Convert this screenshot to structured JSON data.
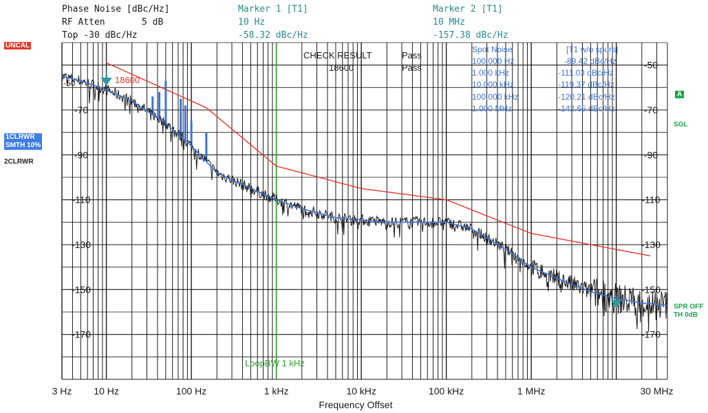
{
  "header": {
    "phase_noise_label": "Phase Noise [dBc/Hz]",
    "rf_atten_label": "RF Atten",
    "rf_atten_value": "5 dB",
    "top_label": "Top -30 dBc/Hz",
    "marker1_title": "Marker 1 [T1]",
    "marker1_freq": "10 Hz",
    "marker1_level": "-58.32 dBc/Hz",
    "marker2_title": "Marker 2 [T1]",
    "marker2_freq": "10 MHz",
    "marker2_level": "-157.38 dBc/Hz"
  },
  "left_panel": {
    "uncal": "UNCAL",
    "trace1_line1": "1CLRWR",
    "trace1_line2": "SMTH 10%",
    "trace2": "2CLRWR"
  },
  "right_panel": {
    "a_box": "A",
    "sgl": "SGL",
    "spr_off": "SPR OFF",
    "th": "TH 0dB"
  },
  "check": {
    "title": "CHECK RESULT",
    "name": "18600",
    "result1": "Pass",
    "result2": "Pass"
  },
  "spot_noise": {
    "header_left": "Spot Noise",
    "header_right": "[T1 w/o spurs]",
    "rows": [
      {
        "freq": "100.000 Hz",
        "value": "-89.42 dBc/Hz"
      },
      {
        "freq": "1.000 kHz",
        "value": "-111.03 dBc/Hz"
      },
      {
        "freq": "10.000 kHz",
        "value": "-119.37 dBc/Hz"
      },
      {
        "freq": "100.000 kHz",
        "value": "-120.21 dBc/Hz"
      },
      {
        "freq": "1.000 MHz",
        "value": "-142.65 dBc/Hz"
      }
    ]
  },
  "colors": {
    "limit": "#e8362b",
    "trace_blue": "#3d73d6",
    "trace_black": "#1a1a1a",
    "marker": "#2a9aa0",
    "loopbw": "#2ea02e"
  },
  "chart_data": {
    "type": "line",
    "xlabel": "Frequency Offset",
    "ylabel": "",
    "x_scale": "log",
    "xlim": [
      3,
      40000000
    ],
    "ylim": [
      -190,
      -40
    ],
    "x_tick_labels": [
      {
        "value": 3,
        "label": "3 Hz"
      },
      {
        "value": 10,
        "label": "10 Hz"
      },
      {
        "value": 100,
        "label": "100 Hz"
      },
      {
        "value": 1000,
        "label": "1 kHz"
      },
      {
        "value": 10000,
        "label": "10 kHz"
      },
      {
        "value": 100000,
        "label": "100 kHz"
      },
      {
        "value": 1000000,
        "label": "1 MHz"
      },
      {
        "value": 30000000,
        "label": "30 MHz"
      }
    ],
    "y_ticks_left": [
      {
        "value": -50,
        "label": ""
      },
      {
        "value": -70,
        "label": "-70"
      },
      {
        "value": -90,
        "label": "-90"
      },
      {
        "value": -110,
        "label": "-110"
      },
      {
        "value": -130,
        "label": "-130"
      },
      {
        "value": -150,
        "label": "-150"
      },
      {
        "value": -170,
        "label": "-170"
      }
    ],
    "y_ticks_right": [
      {
        "value": -50,
        "label": "-50"
      },
      {
        "value": -70,
        "label": "-70"
      },
      {
        "value": -90,
        "label": "-90"
      },
      {
        "value": -110,
        "label": "-110"
      },
      {
        "value": -130,
        "label": "-130"
      },
      {
        "value": -150,
        "label": "-150"
      },
      {
        "value": -170,
        "label": "-170"
      }
    ],
    "grid": true,
    "series": [
      {
        "name": "18600",
        "role": "limit",
        "x": [
          10,
          150,
          1000,
          10000,
          100000,
          1000000,
          25000000
        ],
        "y": [
          -49,
          -69,
          -95,
          -105,
          -110,
          -125,
          -135
        ]
      },
      {
        "name": "",
        "role": "smoothed",
        "x": [
          3,
          5,
          10,
          20,
          50,
          100,
          200,
          500,
          1000,
          2000,
          5000,
          10000,
          20000,
          50000,
          100000,
          200000,
          500000,
          1000000,
          2000000,
          5000000,
          10000000,
          20000000,
          40000000
        ],
        "y": [
          -55,
          -57,
          -61,
          -66,
          -76,
          -86,
          -98,
          -105,
          -110,
          -114,
          -118,
          -119,
          -120,
          -120,
          -120,
          -123,
          -132,
          -140,
          -145,
          -151,
          -154,
          -156,
          -157
        ]
      }
    ],
    "spurs": [
      {
        "x": 35,
        "y": -64
      },
      {
        "x": 42,
        "y": -62
      },
      {
        "x": 50,
        "y": -57
      },
      {
        "x": 75,
        "y": -65
      },
      {
        "x": 85,
        "y": -68
      },
      {
        "x": 100,
        "y": -75
      },
      {
        "x": 150,
        "y": -80
      }
    ],
    "markers": [
      {
        "label": "1",
        "x": 10,
        "y": -58.32
      },
      {
        "label": "2",
        "x": 10000000,
        "y": -157.38
      }
    ],
    "annotations": {
      "loopbw_label": "LoopBW 1 kHz",
      "loopbw_x": 1000,
      "limit_label": "18600",
      "ref_level_label": "-50"
    }
  }
}
